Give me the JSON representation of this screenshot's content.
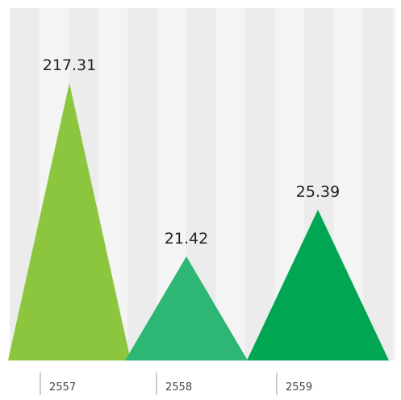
{
  "chart_data": {
    "type": "bar",
    "mark_shape": "triangle",
    "categories": [
      "2557",
      "2558",
      "2559"
    ],
    "values": [
      217.31,
      21.42,
      25.39
    ],
    "value_labels": [
      "217.31",
      "21.42",
      "25.39"
    ],
    "title": "",
    "xlabel": "",
    "ylabel": "",
    "grid": "vertical bands",
    "colors": [
      "#8cc63f",
      "#2db674",
      "#00a651"
    ],
    "background_band_colors": [
      "#ececec",
      "#f4f4f4"
    ]
  }
}
